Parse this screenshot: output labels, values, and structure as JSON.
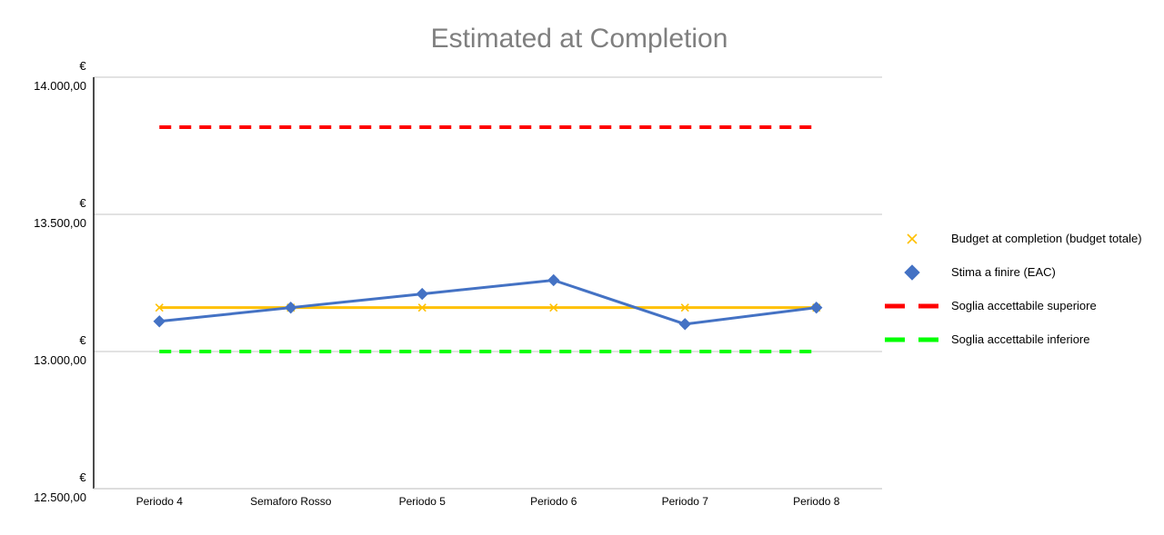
{
  "chart_data": {
    "type": "line",
    "title": "Estimated at Completion",
    "categories": [
      "Periodo 4",
      "Semaforo Rosso",
      "Periodo 5",
      "Periodo 6",
      "Periodo 7",
      "Periodo 8"
    ],
    "y_tick_labels": [
      {
        "value": 14000,
        "currency": "€",
        "amount": "14.000,00"
      },
      {
        "value": 13500,
        "currency": "€",
        "amount": "13.500,00"
      },
      {
        "value": 13000,
        "currency": "€",
        "amount": "13.000,00"
      },
      {
        "value": 12500,
        "currency": "€",
        "amount": "12.500,00"
      }
    ],
    "ylim": [
      12500,
      14000
    ],
    "grid": true,
    "legend_position": "right",
    "series": [
      {
        "name": "Budget at completion (budget totale)",
        "color": "#ffc000",
        "style": "solid",
        "marker": "x",
        "values": [
          13160,
          13160,
          13160,
          13160,
          13160,
          13160
        ]
      },
      {
        "name": "Stima a finire (EAC)",
        "color": "#4472c4",
        "style": "solid",
        "marker": "diamond",
        "values": [
          13110,
          13160,
          13210,
          13260,
          13100,
          13160
        ]
      },
      {
        "name": "Soglia accettabile superiore",
        "color": "#ff0000",
        "style": "dashed",
        "marker": "none",
        "values": [
          13818,
          13818,
          13818,
          13818,
          13818,
          13818
        ]
      },
      {
        "name": "Soglia accettabile inferiore",
        "color": "#00ff00",
        "style": "dashed",
        "marker": "none",
        "values": [
          13000,
          13000,
          13000,
          13000,
          13000,
          13000
        ]
      }
    ]
  }
}
